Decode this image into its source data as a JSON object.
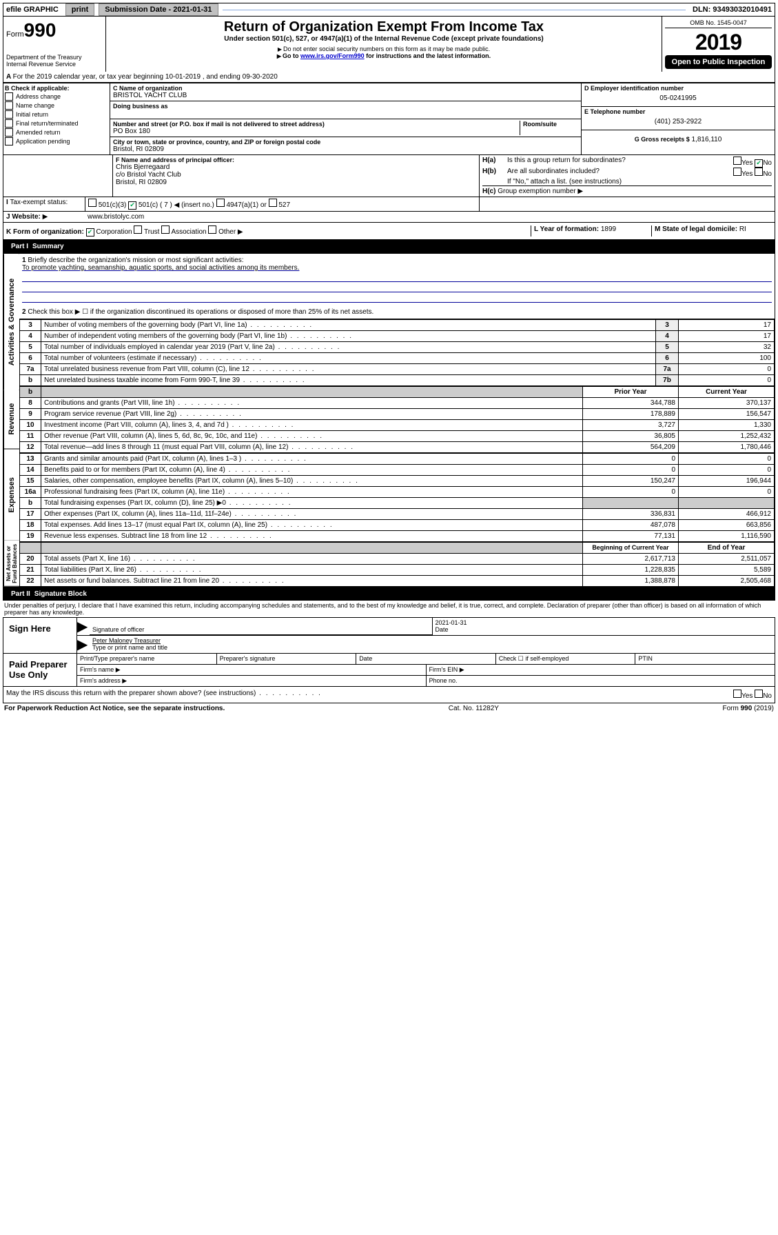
{
  "topbar": {
    "efile_label": "efile GRAPHIC",
    "print_label": "print",
    "submission_label": "Submission Date - 2021-01-31",
    "dln_label": "DLN: 93493032010491"
  },
  "header": {
    "form_prefix": "Form",
    "form_number": "990",
    "dept": "Department of the Treasury",
    "irs": "Internal Revenue Service",
    "title": "Return of Organization Exempt From Income Tax",
    "subtitle": "Under section 501(c), 527, or 4947(a)(1) of the Internal Revenue Code (except private foundations)",
    "warning": "Do not enter social security numbers on this form as it may be made public.",
    "goto_pre": "Go to ",
    "goto_link": "www.irs.gov/Form990",
    "goto_post": " for instructions and the latest information.",
    "omb": "OMB No. 1545-0047",
    "year": "2019",
    "open": "Open to Public Inspection"
  },
  "line_a": "For the 2019 calendar year, or tax year beginning 10-01-2019    , and ending 09-30-2020",
  "section_b": {
    "header": "Check if applicable:",
    "items": [
      "Address change",
      "Name change",
      "Initial return",
      "Final return/terminated",
      "Amended return",
      "Application pending"
    ]
  },
  "section_c": {
    "name_lbl": "C Name of organization",
    "name": "BRISTOL YACHT CLUB",
    "dba_lbl": "Doing business as",
    "dba": "",
    "addr_lbl": "Number and street (or P.O. box if mail is not delivered to street address)",
    "room_lbl": "Room/suite",
    "addr": "PO Box 180",
    "city_lbl": "City or town, state or province, country, and ZIP or foreign postal code",
    "city": "Bristol, RI  02809"
  },
  "section_d": {
    "ein_lbl": "D Employer identification number",
    "ein": "05-0241995",
    "phone_lbl": "E Telephone number",
    "phone": "(401) 253-2922",
    "gross_lbl": "G Gross receipts $",
    "gross": "1,816,110"
  },
  "section_f": {
    "lbl": "F  Name and address of principal officer:",
    "name": "Chris Bjerregaard",
    "co": "c/o Bristol Yacht Club",
    "addr": "Bristol, RI  02809"
  },
  "section_h": {
    "a_lbl": "Is this a group return for subordinates?",
    "a_yes": "Yes",
    "a_no": "No",
    "b_lbl": "Are all subordinates included?",
    "note": "If \"No,\" attach a list. (see instructions)",
    "c_lbl": "Group exemption number"
  },
  "tax_exempt": {
    "lbl": "Tax-exempt status:",
    "o1": "501(c)(3)",
    "o2": "501(c) ( 7 )",
    "o2_post": "(insert no.)",
    "o3": "4947(a)(1) or",
    "o4": "527"
  },
  "website": {
    "lbl": "Website:",
    "val": "www.bristolyc.com"
  },
  "section_k": {
    "lbl": "K Form of organization:",
    "corp": "Corporation",
    "trust": "Trust",
    "assoc": "Association",
    "other": "Other"
  },
  "section_l": {
    "lbl": "L Year of formation:",
    "val": "1899"
  },
  "section_m": {
    "lbl": "M State of legal domicile:",
    "val": "RI"
  },
  "part1": {
    "header": "Part I",
    "title": "Summary",
    "line1_lbl": "Briefly describe the organization's mission or most significant activities:",
    "line1_val": "To promote yachting, seamanship, aquatic sports, and social activities among its members.",
    "line2": "Check this box ▶ ☐  if the organization discontinued its operations or disposed of more than 25% of its net assets.",
    "rows_gov": [
      {
        "n": "3",
        "d": "Number of voting members of the governing body (Part VI, line 1a)",
        "b": "3",
        "v": "17"
      },
      {
        "n": "4",
        "d": "Number of independent voting members of the governing body (Part VI, line 1b)",
        "b": "4",
        "v": "17"
      },
      {
        "n": "5",
        "d": "Total number of individuals employed in calendar year 2019 (Part V, line 2a)",
        "b": "5",
        "v": "32"
      },
      {
        "n": "6",
        "d": "Total number of volunteers (estimate if necessary)",
        "b": "6",
        "v": "100"
      },
      {
        "n": "7a",
        "d": "Total unrelated business revenue from Part VIII, column (C), line 12",
        "b": "7a",
        "v": "0"
      },
      {
        "n": "b",
        "d": "Net unrelated business taxable income from Form 990-T, line 39",
        "b": "7b",
        "v": "0"
      }
    ],
    "col_prior": "Prior Year",
    "col_current": "Current Year",
    "rows_rev": [
      {
        "n": "8",
        "d": "Contributions and grants (Part VIII, line 1h)",
        "p": "344,788",
        "c": "370,137"
      },
      {
        "n": "9",
        "d": "Program service revenue (Part VIII, line 2g)",
        "p": "178,889",
        "c": "156,547"
      },
      {
        "n": "10",
        "d": "Investment income (Part VIII, column (A), lines 3, 4, and 7d )",
        "p": "3,727",
        "c": "1,330"
      },
      {
        "n": "11",
        "d": "Other revenue (Part VIII, column (A), lines 5, 6d, 8c, 9c, 10c, and 11e)",
        "p": "36,805",
        "c": "1,252,432"
      },
      {
        "n": "12",
        "d": "Total revenue—add lines 8 through 11 (must equal Part VIII, column (A), line 12)",
        "p": "564,209",
        "c": "1,780,446"
      }
    ],
    "rows_exp": [
      {
        "n": "13",
        "d": "Grants and similar amounts paid (Part IX, column (A), lines 1–3 )",
        "p": "0",
        "c": "0"
      },
      {
        "n": "14",
        "d": "Benefits paid to or for members (Part IX, column (A), line 4)",
        "p": "0",
        "c": "0"
      },
      {
        "n": "15",
        "d": "Salaries, other compensation, employee benefits (Part IX, column (A), lines 5–10)",
        "p": "150,247",
        "c": "196,944"
      },
      {
        "n": "16a",
        "d": "Professional fundraising fees (Part IX, column (A), line 11e)",
        "p": "0",
        "c": "0"
      },
      {
        "n": "b",
        "d": "Total fundraising expenses (Part IX, column (D), line 25) ▶0",
        "p": "shade",
        "c": "shade"
      },
      {
        "n": "17",
        "d": "Other expenses (Part IX, column (A), lines 11a–11d, 11f–24e)",
        "p": "336,831",
        "c": "466,912"
      },
      {
        "n": "18",
        "d": "Total expenses. Add lines 13–17 (must equal Part IX, column (A), line 25)",
        "p": "487,078",
        "c": "663,856"
      },
      {
        "n": "19",
        "d": "Revenue less expenses. Subtract line 18 from line 12",
        "p": "77,131",
        "c": "1,116,590"
      }
    ],
    "col_begin": "Beginning of Current Year",
    "col_end": "End of Year",
    "rows_net": [
      {
        "n": "20",
        "d": "Total assets (Part X, line 16)",
        "p": "2,617,713",
        "c": "2,511,057"
      },
      {
        "n": "21",
        "d": "Total liabilities (Part X, line 26)",
        "p": "1,228,835",
        "c": "5,589"
      },
      {
        "n": "22",
        "d": "Net assets or fund balances. Subtract line 21 from line 20",
        "p": "1,388,878",
        "c": "2,505,468"
      }
    ]
  },
  "part2": {
    "header": "Part II",
    "title": "Signature Block",
    "perjury": "Under penalties of perjury, I declare that I have examined this return, including accompanying schedules and statements, and to the best of my knowledge and belief, it is true, correct, and complete. Declaration of preparer (other than officer) is based on all information of which preparer has any knowledge.",
    "sign_here": "Sign Here",
    "sig_date": "2021-01-31",
    "sig_officer": "Signature of officer",
    "date_lbl": "Date",
    "officer_name": "Peter Maloney Treasurer",
    "type_name": "Type or print name and title",
    "paid": "Paid Preparer Use Only",
    "prep_name": "Print/Type preparer's name",
    "prep_sig": "Preparer's signature",
    "prep_date": "Date",
    "self_emp": "Check ☐ if self-employed",
    "ptin": "PTIN",
    "firm_name": "Firm's name  ▶",
    "firm_ein": "Firm's EIN ▶",
    "firm_addr": "Firm's address ▶",
    "phone": "Phone no."
  },
  "bottom": {
    "discuss": "May the IRS discuss this return with the preparer shown above? (see instructions)",
    "yes": "Yes",
    "no": "No",
    "paperwork": "For Paperwork Reduction Act Notice, see the separate instructions.",
    "cat": "Cat. No. 11282Y",
    "form": "Form 990 (2019)"
  },
  "side_labels": {
    "gov": "Activities & Governance",
    "rev": "Revenue",
    "exp": "Expenses",
    "net": "Net Assets or Fund Balances"
  }
}
